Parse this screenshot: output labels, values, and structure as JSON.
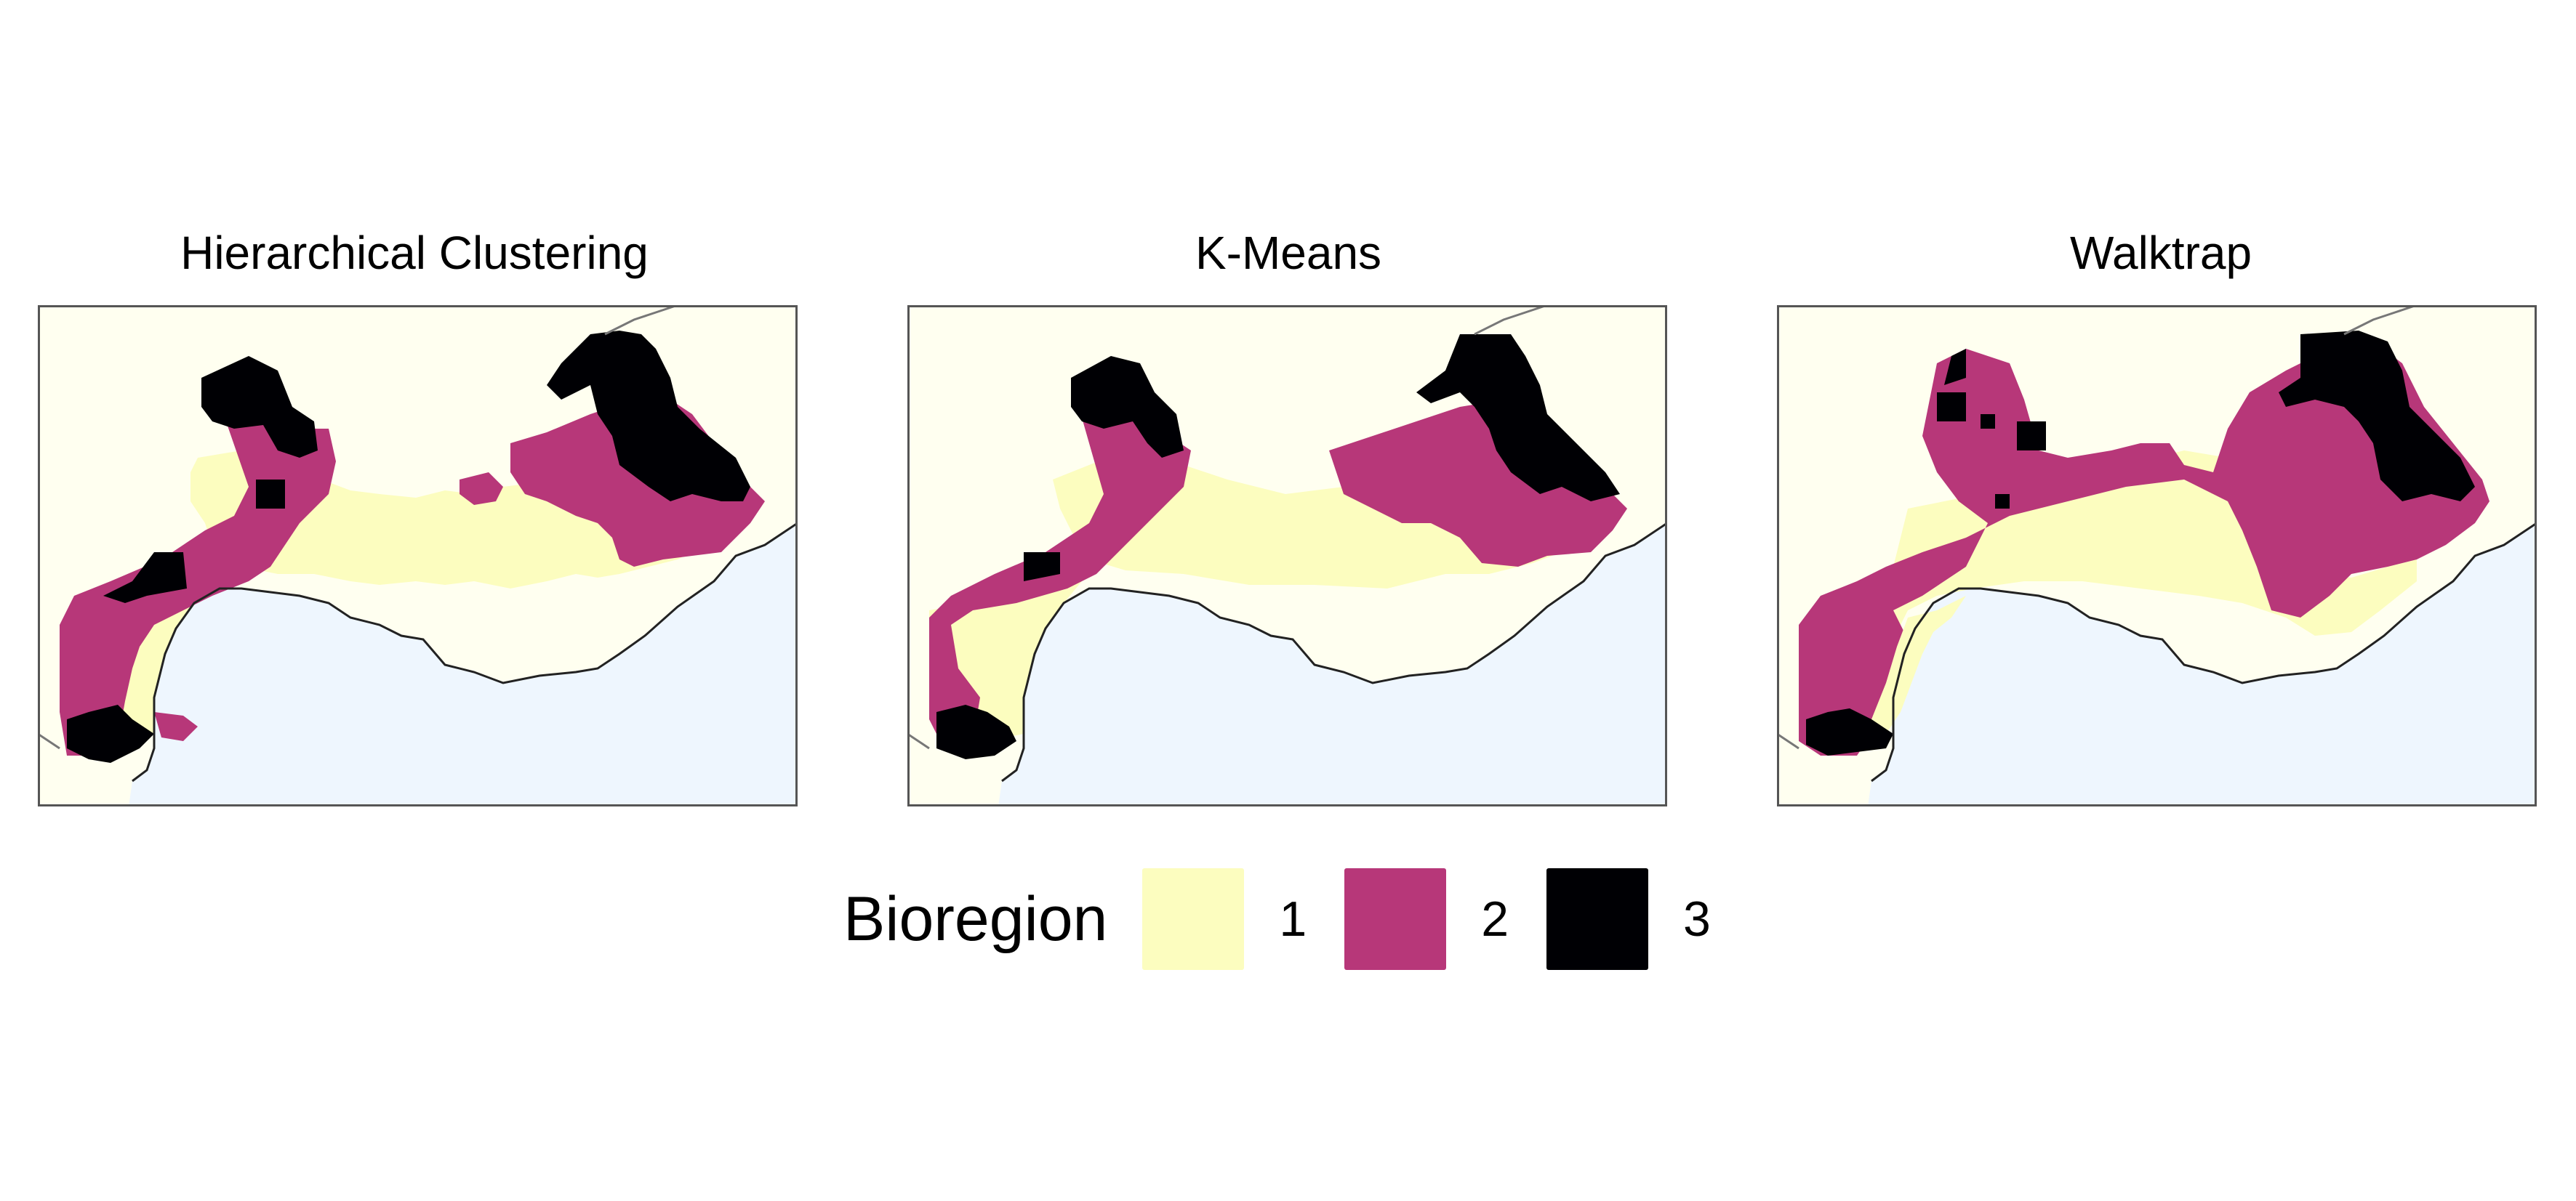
{
  "panels": [
    {
      "title": "Hierarchical Clustering"
    },
    {
      "title": "K-Means"
    },
    {
      "title": "Walktrap"
    }
  ],
  "legend": {
    "title": "Bioregion",
    "items": [
      {
        "label": "1",
        "color": "#FCFDBF"
      },
      {
        "label": "2",
        "color": "#B73779"
      },
      {
        "label": "3",
        "color": "#000004"
      }
    ]
  },
  "colors": {
    "land": "#FFFFF0",
    "sea": "#EEF6FE",
    "region1": "#FCFDBF",
    "region2": "#B73779",
    "region3": "#000004"
  }
}
